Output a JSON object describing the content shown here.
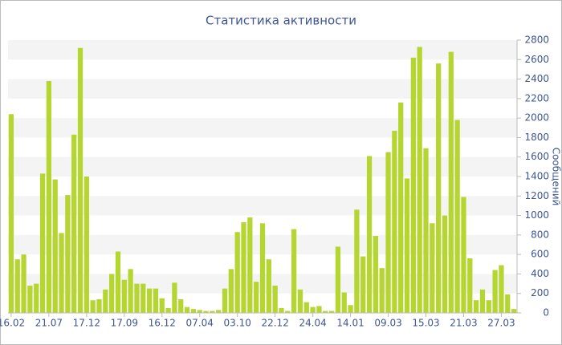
{
  "chart_data": {
    "type": "bar",
    "title": "Статистика активности",
    "y_axis_label": "Сообщений",
    "categories": [
      "16.02",
      null,
      null,
      null,
      null,
      null,
      "21.07",
      null,
      null,
      null,
      null,
      null,
      "17.12",
      null,
      null,
      null,
      null,
      null,
      "17.09",
      null,
      null,
      null,
      null,
      null,
      "16.12",
      null,
      null,
      null,
      null,
      null,
      "07.04",
      null,
      null,
      null,
      null,
      null,
      "03.10",
      null,
      null,
      null,
      null,
      null,
      "22.12",
      null,
      null,
      null,
      null,
      null,
      "24.04",
      null,
      null,
      null,
      null,
      null,
      "14.01",
      null,
      null,
      null,
      null,
      null,
      "09.03",
      null,
      null,
      null,
      null,
      null,
      "15.03",
      null,
      null,
      null,
      null,
      null,
      "21.03",
      null,
      null,
      null,
      null,
      null,
      "27.03",
      null,
      null
    ],
    "values": [
      2040,
      550,
      600,
      280,
      300,
      1430,
      2380,
      1370,
      820,
      1210,
      1830,
      2720,
      1400,
      130,
      140,
      240,
      400,
      630,
      340,
      450,
      300,
      300,
      250,
      250,
      150,
      50,
      310,
      140,
      60,
      40,
      30,
      20,
      20,
      30,
      250,
      450,
      830,
      930,
      980,
      320,
      920,
      550,
      280,
      50,
      20,
      860,
      240,
      110,
      60,
      70,
      20,
      20,
      680,
      210,
      80,
      1060,
      580,
      1610,
      790,
      460,
      1650,
      1870,
      2160,
      1380,
      2620,
      2730,
      1690,
      920,
      2560,
      1000,
      2680,
      1980,
      1190,
      560,
      130,
      240,
      130,
      440,
      490,
      190,
      40
    ],
    "color": "#b5d631",
    "ylim": [
      0,
      2800
    ],
    "yticks": [
      0,
      200,
      400,
      600,
      800,
      1000,
      1200,
      1400,
      1600,
      1800,
      2000,
      2200,
      2400,
      2600,
      2800
    ],
    "grid": true
  }
}
